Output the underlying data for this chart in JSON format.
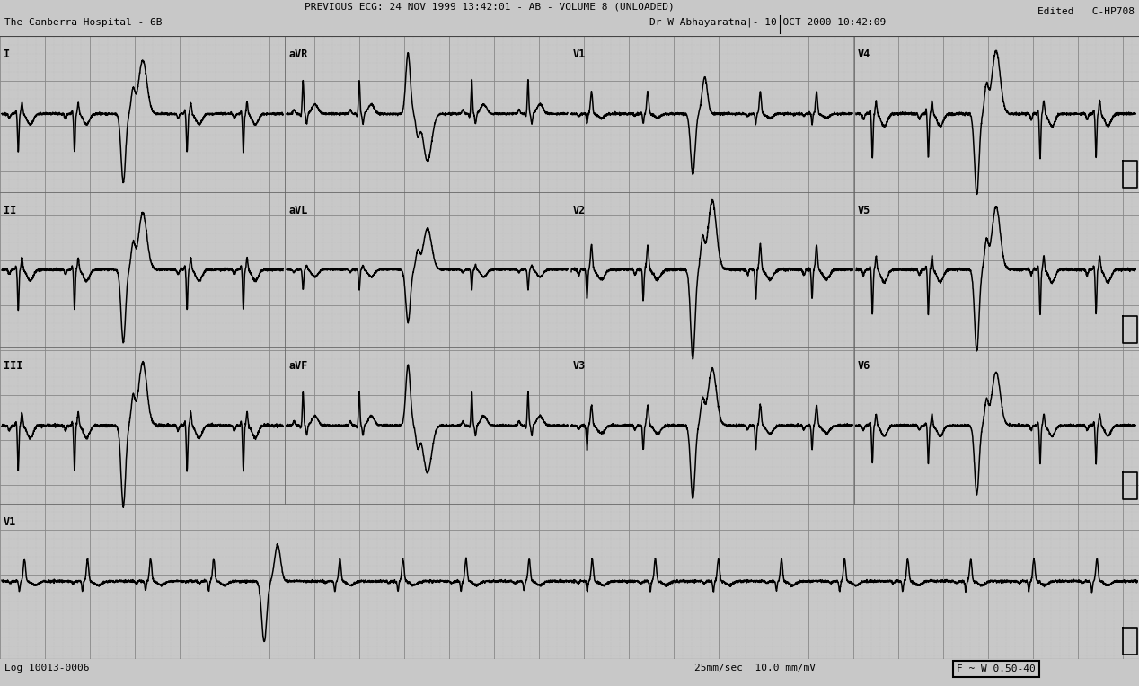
{
  "bg_color": "#c8c8c8",
  "grid_dot_color": "#a0a0a0",
  "grid_major_color": "#909090",
  "line_color": "#000000",
  "title_line1": "PREVIOUS ECG: 24 NOV 1999 13:42:01 - AB - VOLUME 8 (UNLOADED)",
  "title_line2_left": "The Canberra Hospital - 6B",
  "title_line2_right": "Dr W Abhayaratna|- 10 OCT 2000 10:42:09",
  "title_top_right": "Edited   C-HP708",
  "footer_left": "Log 10013-0006",
  "footer_mid": "25mm/sec  10.0 mm/mV",
  "footer_right": "F ~ W 0.50-40",
  "row_labels": [
    [
      "I",
      "aVR",
      "V1",
      "V4"
    ],
    [
      "II",
      "aVL",
      "V2",
      "V5"
    ],
    [
      "III",
      "aVF",
      "V3",
      "V6"
    ],
    [
      "V1"
    ]
  ]
}
